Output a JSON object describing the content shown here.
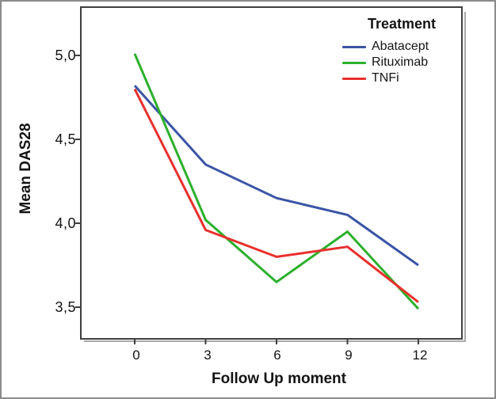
{
  "chart_data": {
    "type": "line",
    "x_label": "Follow Up moment",
    "y_label": "Mean DAS28",
    "legend_title": "Treatment",
    "legend_position": "top-right-inside",
    "grid": false,
    "x": [
      0,
      3,
      6,
      9,
      12
    ],
    "x_tick_labels": [
      "0",
      "3",
      "6",
      "9",
      "12"
    ],
    "y_ticks": [
      5.0,
      4.5,
      4.0,
      3.5
    ],
    "y_tick_labels": [
      "5,0",
      "4,5",
      "4,0",
      "3,5"
    ],
    "ylim": [
      3.3,
      5.3
    ],
    "xlim": [
      -2.3,
      13.9
    ],
    "series": [
      {
        "name": "Abatacept",
        "color": "#3B54A5",
        "values": [
          4.82,
          4.35,
          4.15,
          4.05,
          3.75
        ]
      },
      {
        "name": "Rituximab",
        "color": "#2CB02C",
        "values": [
          5.01,
          4.02,
          3.65,
          3.95,
          3.49
        ]
      },
      {
        "name": "TNFi",
        "color": "#E8302D",
        "values": [
          4.8,
          3.96,
          3.8,
          3.86,
          3.53
        ]
      }
    ],
    "frame_color": "#3f3f3f",
    "frame_shadow_color": "#a8a8a8"
  }
}
